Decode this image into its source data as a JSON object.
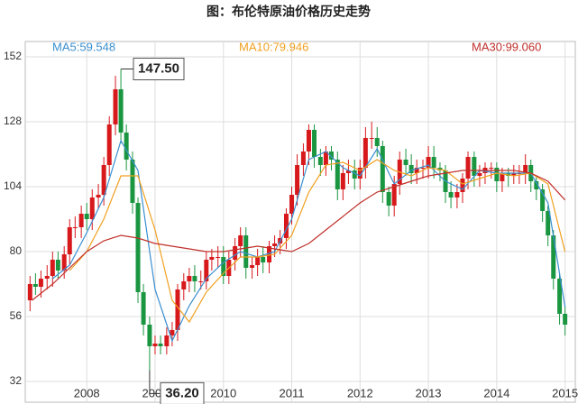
{
  "chart_data": {
    "type": "candlestick",
    "title": "图：布伦特原油价格历史走势",
    "x": [
      2007.17,
      2007.25,
      2007.33,
      2007.42,
      2007.5,
      2007.58,
      2007.67,
      2007.75,
      2007.83,
      2007.92,
      2008.0,
      2008.08,
      2008.17,
      2008.25,
      2008.33,
      2008.42,
      2008.5,
      2008.58,
      2008.67,
      2008.75,
      2008.83,
      2008.92,
      2009.0,
      2009.08,
      2009.17,
      2009.25,
      2009.33,
      2009.42,
      2009.5,
      2009.58,
      2009.67,
      2009.75,
      2009.83,
      2009.92,
      2010.0,
      2010.08,
      2010.17,
      2010.25,
      2010.33,
      2010.42,
      2010.5,
      2010.58,
      2010.67,
      2010.75,
      2010.83,
      2010.92,
      2011.0,
      2011.08,
      2011.17,
      2011.25,
      2011.33,
      2011.42,
      2011.5,
      2011.58,
      2011.67,
      2011.75,
      2011.83,
      2011.92,
      2012.0,
      2012.08,
      2012.17,
      2012.25,
      2012.33,
      2012.42,
      2012.5,
      2012.58,
      2012.67,
      2012.75,
      2012.83,
      2012.92,
      2013.0,
      2013.08,
      2013.17,
      2013.25,
      2013.33,
      2013.42,
      2013.5,
      2013.58,
      2013.67,
      2013.75,
      2013.83,
      2013.92,
      2014.0,
      2014.08,
      2014.17,
      2014.25,
      2014.33,
      2014.42,
      2014.5,
      2014.58,
      2014.67,
      2014.75,
      2014.83,
      2014.92,
      2015.0
    ],
    "open": [
      62,
      68,
      67,
      70,
      71,
      77,
      73,
      79,
      89,
      89,
      94,
      92,
      100,
      101,
      112,
      127,
      140,
      124,
      114,
      98,
      65,
      53,
      45,
      46,
      45,
      49,
      51,
      66,
      69,
      71,
      69,
      69,
      77,
      78,
      78,
      71,
      77,
      82,
      86,
      74,
      75,
      78,
      76,
      82,
      83,
      85,
      94,
      101,
      112,
      117,
      125,
      115,
      112,
      117,
      114,
      103,
      109,
      110,
      107,
      111,
      122,
      122,
      119,
      102,
      97,
      105,
      114,
      112,
      109,
      111,
      111,
      115,
      111,
      110,
      102,
      100,
      102,
      107,
      115,
      108,
      109,
      111,
      111,
      106,
      109,
      108,
      109,
      109,
      112,
      106,
      103,
      95,
      86,
      70,
      57
    ],
    "high": [
      71,
      72,
      73,
      75,
      80,
      80,
      82,
      92,
      93,
      97,
      98,
      103,
      105,
      115,
      130,
      145,
      147.5,
      127,
      117,
      100,
      68,
      56,
      49,
      49,
      52,
      54,
      68,
      72,
      74,
      75,
      73,
      80,
      81,
      82,
      82,
      80,
      85,
      89,
      89,
      78,
      81,
      82,
      84,
      86,
      88,
      96,
      104,
      116,
      120,
      127,
      127,
      118,
      119,
      119,
      117,
      112,
      114,
      114,
      114,
      126,
      128,
      126,
      121,
      104,
      108,
      117,
      118,
      116,
      114,
      114,
      119,
      119,
      113,
      112,
      106,
      105,
      109,
      117,
      117,
      112,
      113,
      113,
      113,
      111,
      111,
      112,
      112,
      116,
      114,
      108,
      105,
      97,
      88,
      72,
      60
    ],
    "low": [
      58,
      64,
      63,
      66,
      67,
      70,
      70,
      75,
      85,
      85,
      88,
      88,
      96,
      97,
      108,
      123,
      120,
      110,
      94,
      61,
      49,
      36.2,
      42,
      42,
      42,
      45,
      47,
      62,
      65,
      65,
      66,
      66,
      73,
      74,
      68,
      68,
      73,
      78,
      70,
      70,
      71,
      72,
      72,
      78,
      79,
      81,
      90,
      97,
      108,
      112,
      111,
      108,
      108,
      110,
      99,
      99,
      105,
      103,
      103,
      107,
      118,
      115,
      98,
      93,
      93,
      101,
      108,
      105,
      105,
      107,
      107,
      107,
      106,
      98,
      96,
      96,
      98,
      103,
      104,
      104,
      105,
      107,
      102,
      102,
      104,
      105,
      105,
      105,
      102,
      99,
      91,
      82,
      66,
      53,
      49
    ],
    "close": [
      68,
      67,
      70,
      71,
      77,
      73,
      79,
      89,
      89,
      94,
      92,
      100,
      101,
      112,
      127,
      140,
      124,
      114,
      98,
      65,
      53,
      45,
      46,
      45,
      49,
      51,
      66,
      69,
      71,
      69,
      69,
      77,
      78,
      78,
      71,
      77,
      82,
      86,
      74,
      75,
      78,
      76,
      82,
      83,
      85,
      94,
      101,
      112,
      117,
      125,
      115,
      112,
      117,
      114,
      103,
      109,
      110,
      107,
      111,
      122,
      122,
      119,
      102,
      97,
      105,
      114,
      112,
      109,
      111,
      111,
      115,
      111,
      110,
      102,
      100,
      102,
      107,
      115,
      108,
      109,
      111,
      111,
      106,
      109,
      108,
      109,
      109,
      112,
      106,
      103,
      95,
      86,
      70,
      57,
      53
    ],
    "up_color": "#d7191c",
    "down_color": "#1a9641",
    "series": [
      {
        "name": "MA5:59.548",
        "color": "#3a8fd0",
        "x": [
          2007.5,
          2007.75,
          2008.0,
          2008.25,
          2008.5,
          2008.75,
          2009.0,
          2009.25,
          2009.5,
          2009.75,
          2010.0,
          2010.25,
          2010.5,
          2010.75,
          2011.0,
          2011.25,
          2011.5,
          2011.75,
          2012.0,
          2012.25,
          2012.5,
          2012.75,
          2013.0,
          2013.25,
          2013.5,
          2013.75,
          2014.0,
          2014.25,
          2014.5,
          2014.75,
          2015.0
        ],
        "values": [
          70,
          75,
          87,
          100,
          121,
          110,
          66,
          47,
          60,
          70,
          76,
          80,
          78,
          80,
          92,
          114,
          117,
          111,
          108,
          118,
          105,
          110,
          112,
          106,
          103,
          110,
          109,
          109,
          109,
          98,
          59.548
        ]
      },
      {
        "name": "MA10:79.946",
        "color": "#f0a020",
        "x": [
          2007.75,
          2008.0,
          2008.25,
          2008.5,
          2008.75,
          2009.0,
          2009.25,
          2009.5,
          2009.75,
          2010.0,
          2010.25,
          2010.5,
          2010.75,
          2011.0,
          2011.25,
          2011.5,
          2011.75,
          2012.0,
          2012.25,
          2012.5,
          2012.75,
          2013.0,
          2013.25,
          2013.5,
          2013.75,
          2014.0,
          2014.25,
          2014.5,
          2014.75,
          2015.0
        ],
        "values": [
          73,
          80,
          92,
          108,
          108,
          88,
          62,
          54,
          65,
          72,
          78,
          78,
          79,
          86,
          102,
          112,
          113,
          110,
          114,
          110,
          108,
          111,
          110,
          105,
          107,
          109,
          108,
          109,
          105,
          79.946
        ]
      },
      {
        "name": "MA30:99.060",
        "color": "#c0302a",
        "x": [
          2007.2,
          2007.5,
          2007.75,
          2008.0,
          2008.25,
          2008.5,
          2008.75,
          2009.0,
          2009.25,
          2009.5,
          2009.75,
          2010.0,
          2010.25,
          2010.5,
          2010.75,
          2011.0,
          2011.25,
          2011.5,
          2011.75,
          2012.0,
          2012.25,
          2012.5,
          2012.75,
          2013.0,
          2013.25,
          2013.5,
          2013.75,
          2014.0,
          2014.25,
          2014.5,
          2014.75,
          2015.0
        ],
        "values": [
          62,
          68,
          74,
          80,
          84,
          86,
          85,
          83,
          82,
          81,
          80,
          80,
          81,
          82,
          81,
          80,
          83,
          88,
          93,
          98,
          102,
          104,
          106,
          108,
          109,
          110,
          110,
          110,
          110,
          109,
          106,
          99.06
        ]
      }
    ],
    "annotations": [
      "147.50",
      "36.20"
    ],
    "xlim": [
      2007.1,
      2015.15
    ],
    "xticks": [
      2008,
      2009,
      2010,
      2011,
      2012,
      2013,
      2014,
      2015
    ],
    "ylim": [
      32,
      152
    ],
    "yticks": [
      32,
      56,
      80,
      104,
      128,
      152
    ],
    "grid": true
  }
}
